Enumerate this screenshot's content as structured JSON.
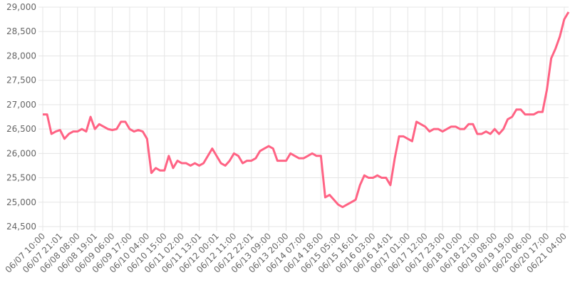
{
  "chart_data": {
    "type": "line",
    "categories": [
      "06/07 10:00",
      null,
      null,
      null,
      "06/07 21:01",
      null,
      null,
      null,
      "06/08 08:00",
      null,
      null,
      null,
      "06/08 19:01",
      null,
      null,
      null,
      "06/09 06:00",
      null,
      null,
      null,
      "06/09 17:00",
      null,
      null,
      null,
      "06/10 04:00",
      null,
      null,
      null,
      "06/10 15:00",
      null,
      null,
      null,
      "06/11 02:00",
      null,
      null,
      null,
      "06/11 13:01",
      null,
      null,
      null,
      "06/12 00:01",
      null,
      null,
      null,
      "06/12 11:00",
      null,
      null,
      null,
      "06/12 22:01",
      null,
      null,
      null,
      "06/13 09:00",
      null,
      null,
      null,
      "06/13 20:00",
      null,
      null,
      null,
      "06/14 07:00",
      null,
      null,
      null,
      "06/14 18:00",
      null,
      null,
      null,
      "06/15 05:00",
      null,
      null,
      null,
      "06/15 16:01",
      null,
      null,
      null,
      "06/16 03:00",
      null,
      null,
      null,
      "06/16 14:01",
      null,
      null,
      null,
      "06/17 01:00",
      null,
      null,
      null,
      "06/17 12:00",
      null,
      null,
      null,
      "06/17 23:00",
      null,
      null,
      null,
      "06/18 10:00",
      null,
      null,
      null,
      "06/18 21:00",
      null,
      null,
      null,
      "06/19 08:00",
      null,
      null,
      null,
      "06/19 19:00",
      null,
      null,
      null,
      "06/20 06:00",
      null,
      null,
      null,
      "06/20 17:00",
      null,
      null,
      null,
      "06/21 04:00",
      null
    ],
    "series": [
      {
        "color": "#ff6384",
        "values": [
          26800,
          26800,
          26400,
          26450,
          26480,
          26300,
          26400,
          26450,
          26450,
          26500,
          26450,
          26750,
          26500,
          26600,
          26550,
          26500,
          26480,
          26500,
          26650,
          26650,
          26500,
          26450,
          26480,
          26450,
          26300,
          25600,
          25700,
          25650,
          25650,
          25950,
          25700,
          25850,
          25800,
          25800,
          25750,
          25800,
          25750,
          25800,
          25950,
          26100,
          25950,
          25800,
          25750,
          25850,
          26000,
          25950,
          25800,
          25850,
          25850,
          25900,
          26050,
          26100,
          26150,
          26100,
          25850,
          25850,
          25850,
          26000,
          25950,
          25900,
          25900,
          25950,
          26000,
          25950,
          25950,
          25100,
          25150,
          25050,
          24950,
          24900,
          24950,
          25000,
          25050,
          25350,
          25550,
          25500,
          25500,
          25550,
          25500,
          25500,
          25350,
          25900,
          26350,
          26350,
          26300,
          26250,
          26650,
          26600,
          26550,
          26450,
          26500,
          26500,
          26450,
          26500,
          26550,
          26550,
          26500,
          26500,
          26600,
          26600,
          26400,
          26400,
          26450,
          26400,
          26500,
          26400,
          26500,
          26700,
          26750,
          26900,
          26900,
          26800,
          26800,
          26800,
          26850,
          26850,
          27300,
          27950,
          28150,
          28400,
          28750,
          28900
        ]
      }
    ],
    "ylim": [
      24500,
      29000
    ],
    "yticks": [
      {
        "value": 24500,
        "label": "24,500"
      },
      {
        "value": 25000,
        "label": "25,000"
      },
      {
        "value": 25500,
        "label": "25,500"
      },
      {
        "value": 26000,
        "label": "26,000"
      },
      {
        "value": 26500,
        "label": "26,500"
      },
      {
        "value": 27000,
        "label": "27,000"
      },
      {
        "value": 27500,
        "label": "27,500"
      },
      {
        "value": 28000,
        "label": "28,000"
      },
      {
        "value": 28500,
        "label": "28,500"
      },
      {
        "value": 29000,
        "label": "29,000"
      }
    ],
    "grid": true
  }
}
